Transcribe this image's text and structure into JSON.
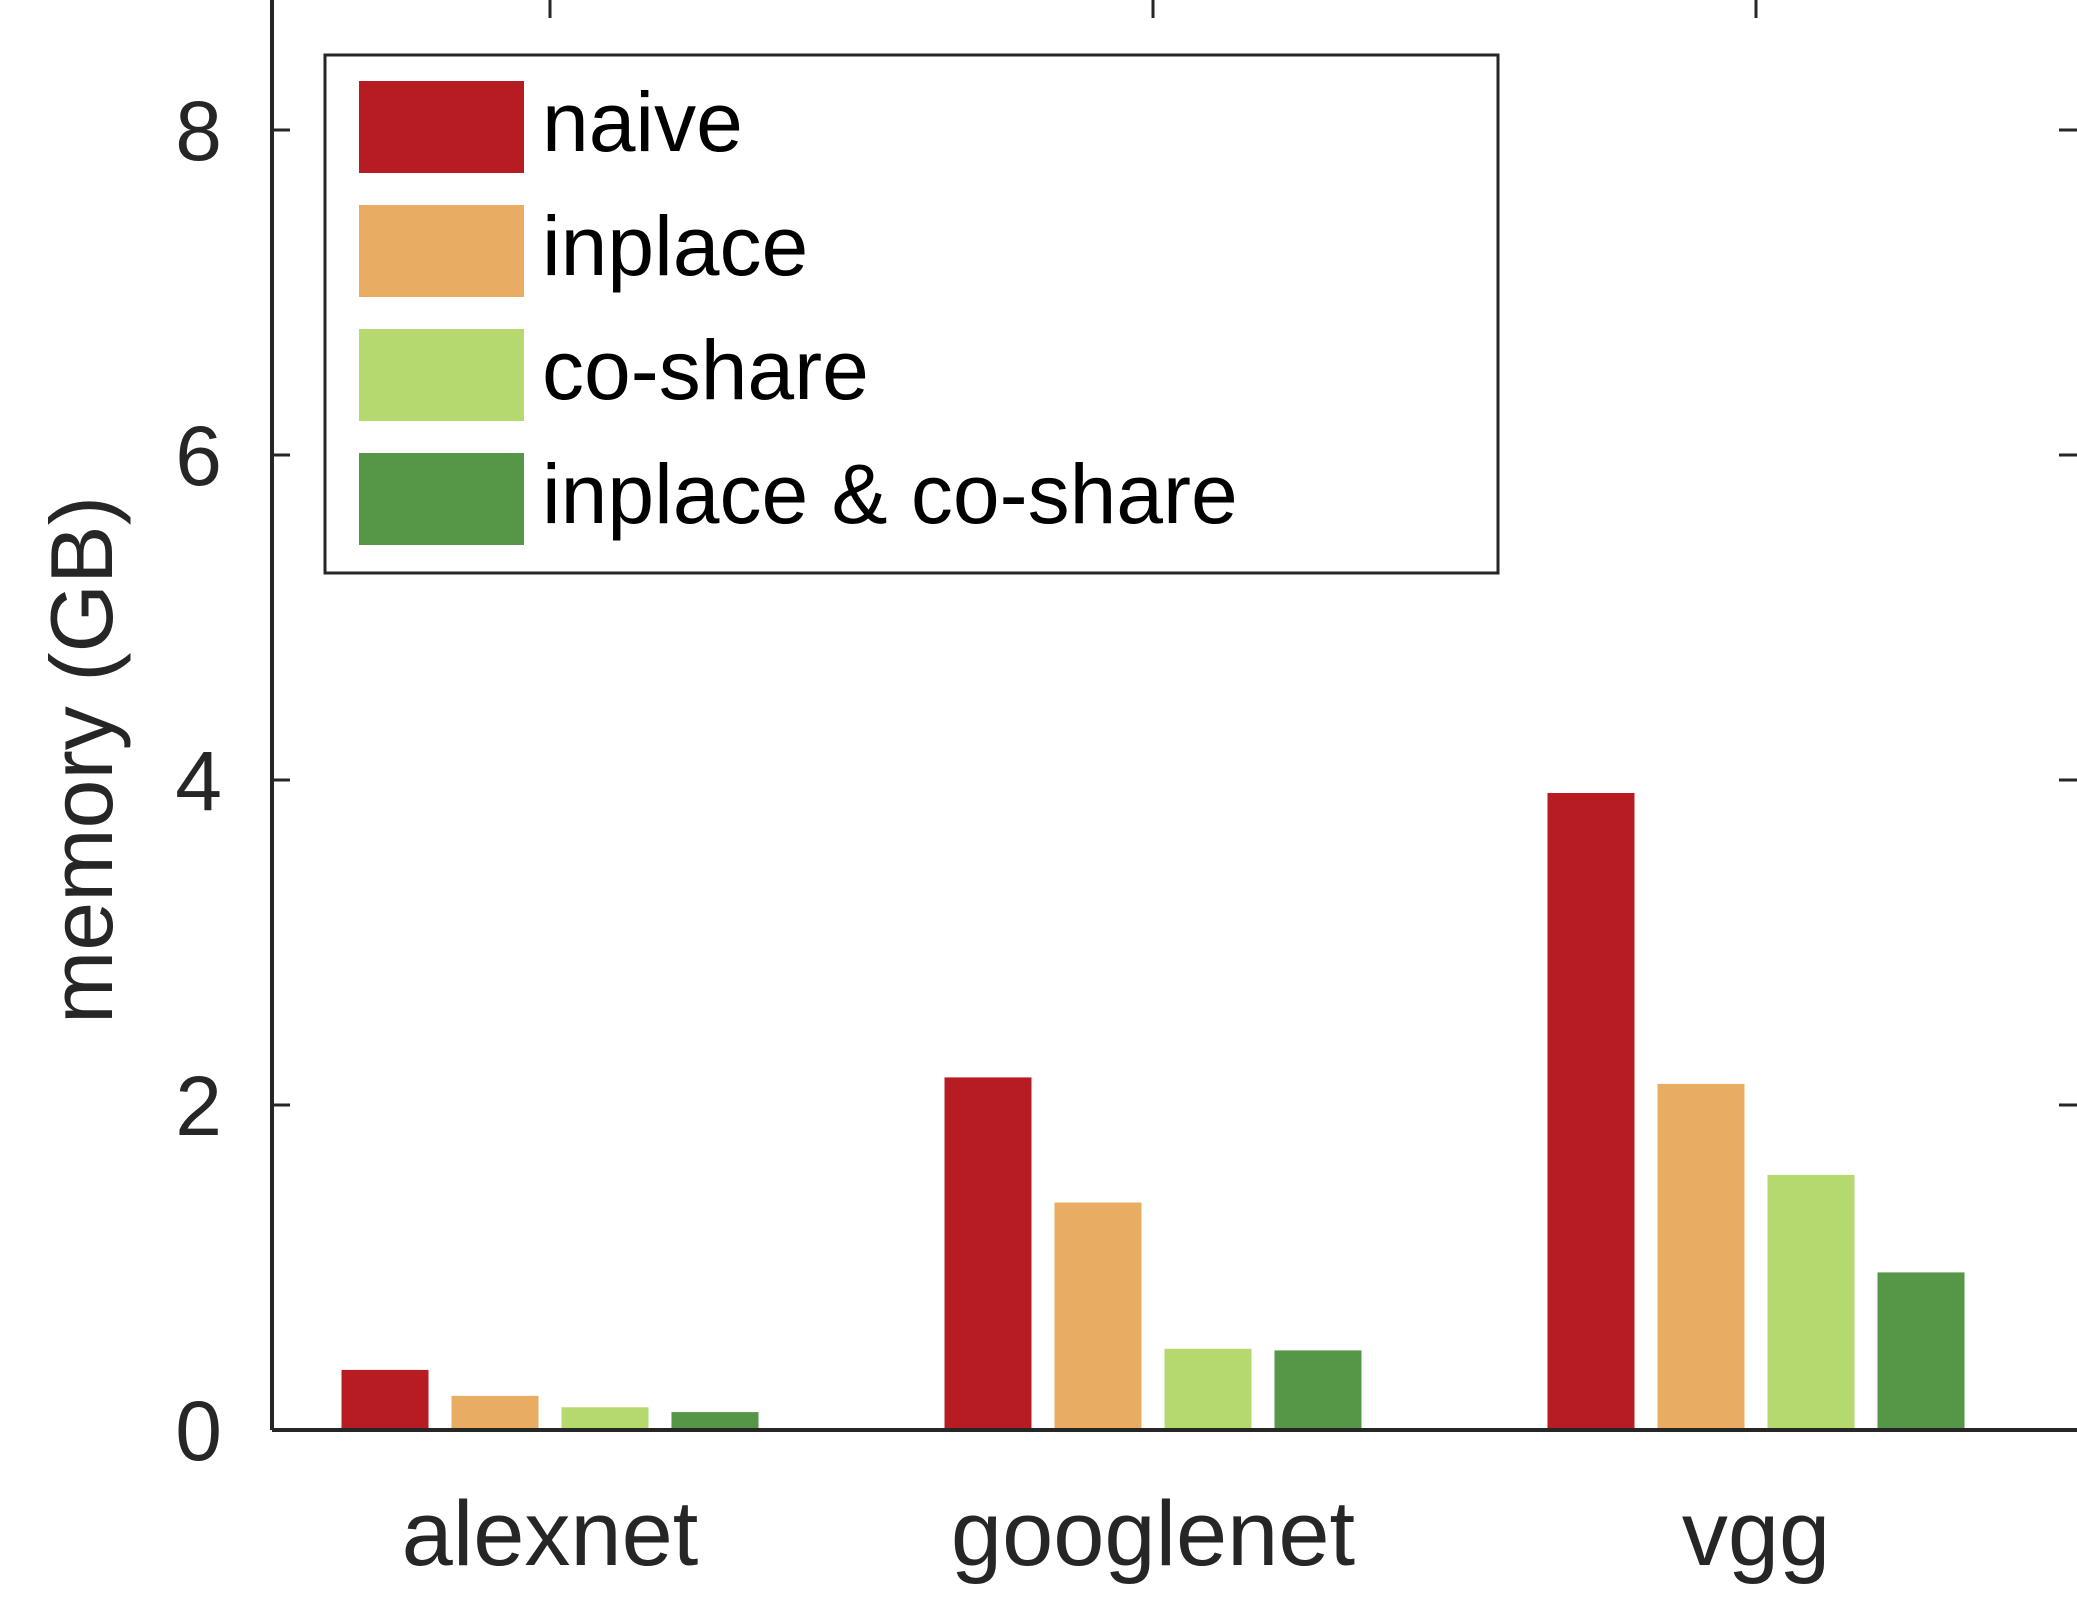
{
  "chart_data": {
    "type": "bar",
    "title": "",
    "xlabel": "",
    "ylabel": "memory (GB)",
    "categories": [
      "alexnet",
      "googlenet",
      "vgg"
    ],
    "ylim": [
      0,
      8.8
    ],
    "yticks": [
      0,
      2,
      4,
      6,
      8
    ],
    "grid": false,
    "legend_position": "top-left",
    "series": [
      {
        "name": "naive",
        "color": "#b71c22",
        "values": [
          0.37,
          2.17,
          3.92
        ]
      },
      {
        "name": "inplace",
        "color": "#e8ac62",
        "values": [
          0.21,
          1.4,
          2.13
        ]
      },
      {
        "name": "co-share",
        "color": "#b5d96f",
        "values": [
          0.14,
          0.5,
          1.57
        ]
      },
      {
        "name": "inplace & co-share",
        "color": "#559647",
        "values": [
          0.11,
          0.49,
          0.97
        ]
      }
    ]
  }
}
